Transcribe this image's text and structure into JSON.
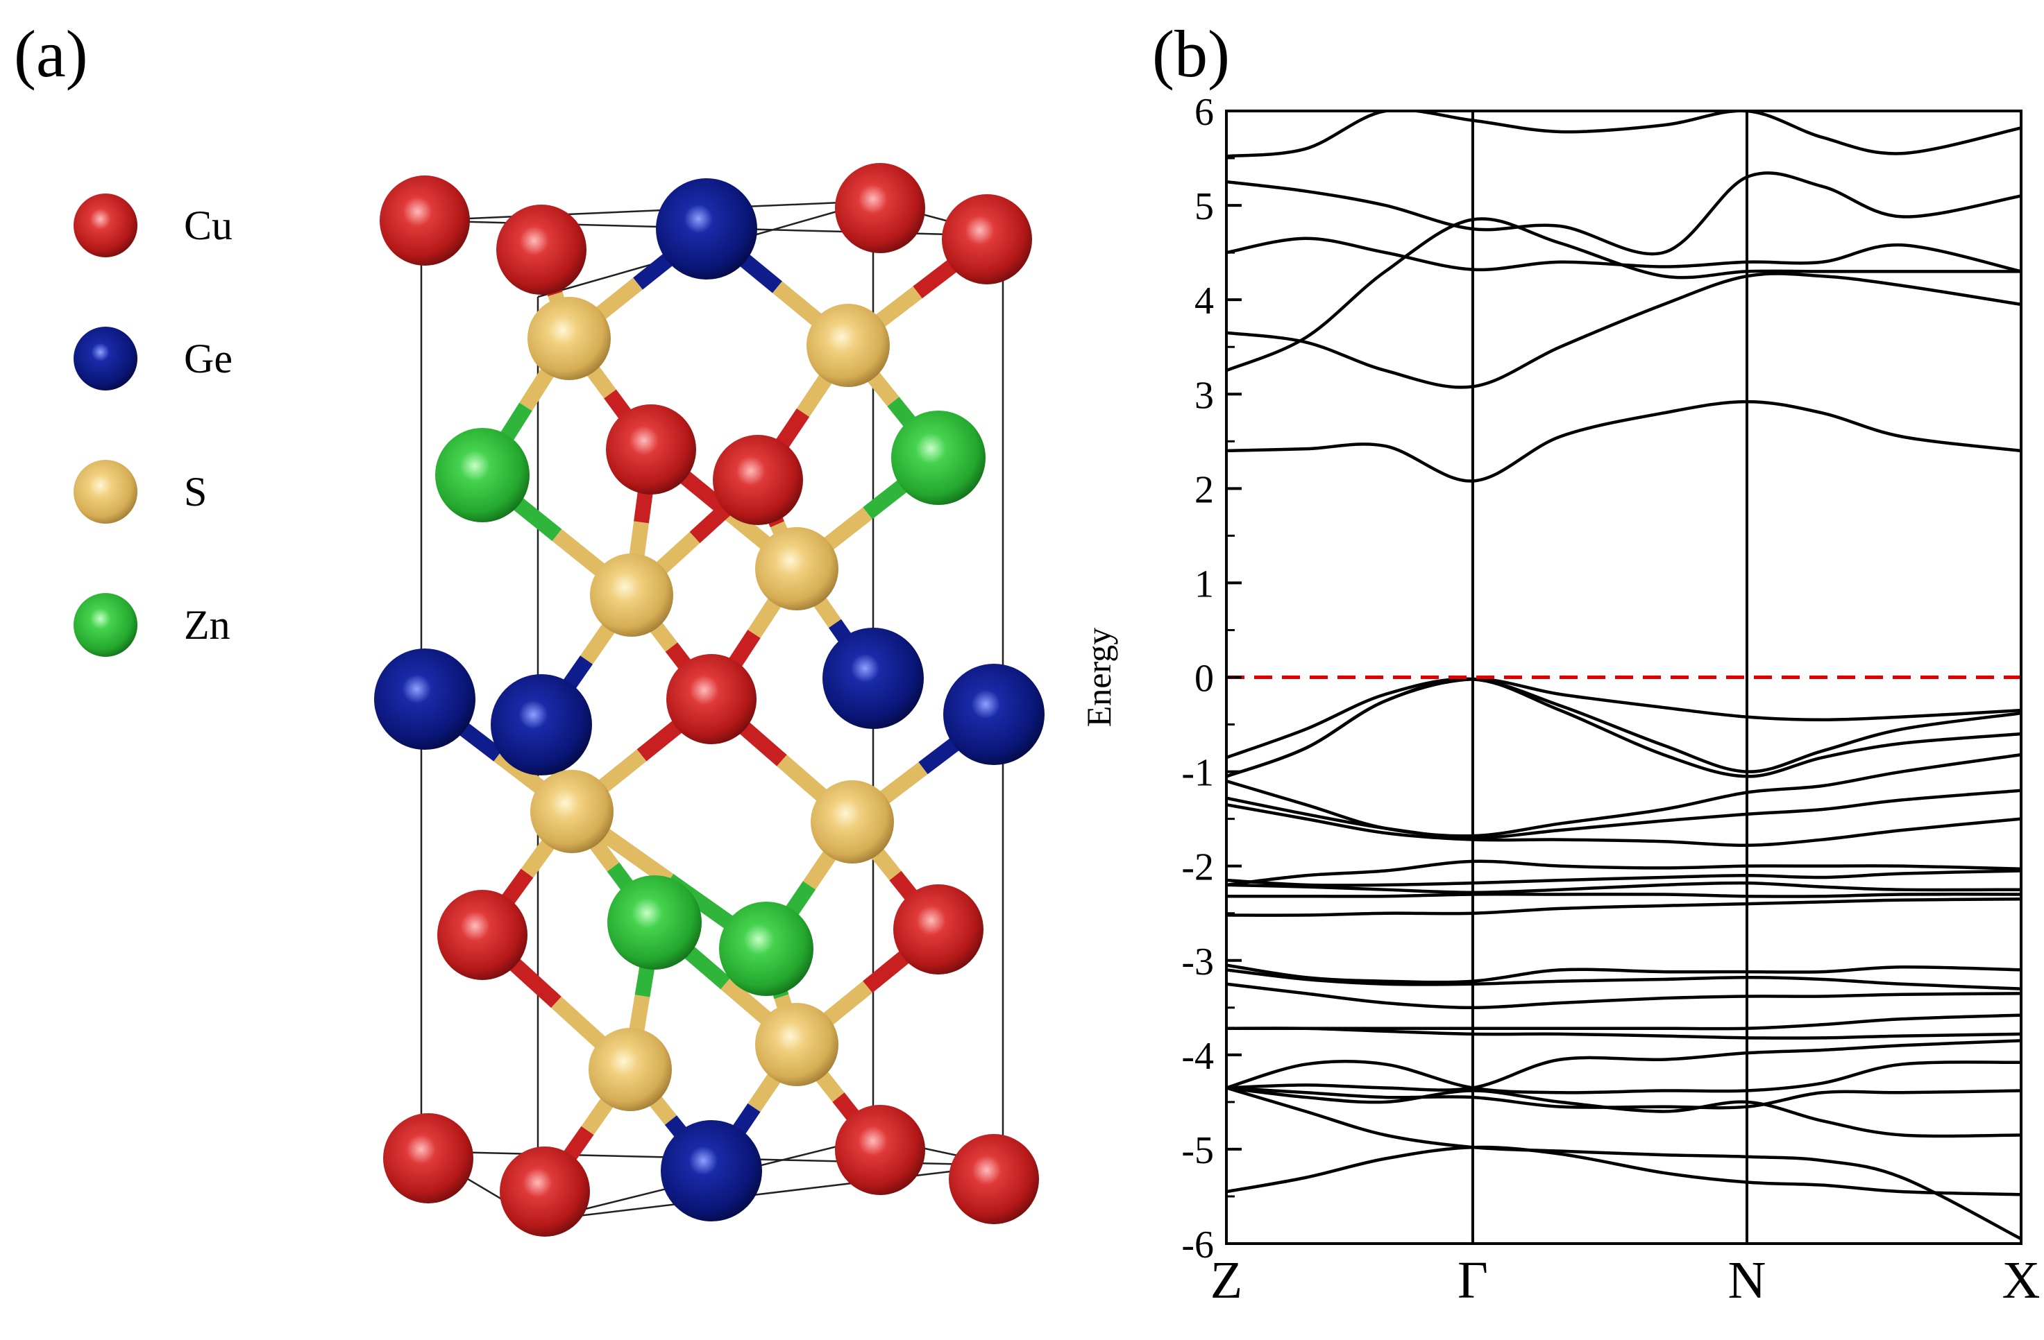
{
  "figure": {
    "panel_a_label": "(a)",
    "panel_b_label": "(b)"
  },
  "crystal": {
    "legend": [
      {
        "element": "Cu",
        "color": "#c81e1e"
      },
      {
        "element": "Ge",
        "color": "#0a1a86"
      },
      {
        "element": "S",
        "color": "#e8c26a"
      },
      {
        "element": "Zn",
        "color": "#2fbf3a"
      }
    ]
  },
  "chart_data": {
    "type": "line",
    "title": "",
    "xlabel": "",
    "ylabel": "Energy",
    "ylim": [
      -6,
      6
    ],
    "yticks": [
      -6,
      -5,
      -4,
      -3,
      -2,
      -1,
      0,
      1,
      2,
      3,
      4,
      5,
      6
    ],
    "kpath_labels": [
      "Z",
      "Γ",
      "N",
      "X"
    ],
    "kpath_positions": [
      0,
      0.31,
      0.655,
      1.0
    ],
    "fermi_level": 0,
    "fermi_line_color": "#e00000",
    "band_color": "#000000",
    "grid": false,
    "bands": [
      {
        "x": [
          0,
          0.1,
          0.2,
          0.31,
          0.42,
          0.55,
          0.655,
          0.75,
          0.85,
          1.0
        ],
        "y": [
          -5.45,
          -5.3,
          -5.1,
          -4.98,
          -5.05,
          -5.25,
          -5.35,
          -5.38,
          -5.45,
          -5.48
        ]
      },
      {
        "x": [
          0,
          0.1,
          0.2,
          0.31,
          0.42,
          0.55,
          0.655,
          0.75,
          0.85,
          1.0
        ],
        "y": [
          -4.35,
          -4.6,
          -4.85,
          -4.98,
          -5.02,
          -5.06,
          -5.08,
          -5.12,
          -5.3,
          -5.95
        ]
      },
      {
        "x": [
          0,
          0.1,
          0.2,
          0.31,
          0.42,
          0.55,
          0.655,
          0.75,
          0.85,
          1.0
        ],
        "y": [
          -4.35,
          -4.45,
          -4.5,
          -4.38,
          -4.5,
          -4.6,
          -4.5,
          -4.7,
          -4.85,
          -4.85
        ]
      },
      {
        "x": [
          0,
          0.1,
          0.2,
          0.31,
          0.42,
          0.55,
          0.655,
          0.75,
          0.85,
          1.0
        ],
        "y": [
          -4.35,
          -4.4,
          -4.45,
          -4.45,
          -4.55,
          -4.55,
          -4.55,
          -4.4,
          -4.4,
          -4.38
        ]
      },
      {
        "x": [
          0,
          0.1,
          0.2,
          0.31,
          0.42,
          0.55,
          0.655,
          0.75,
          0.85,
          1.0
        ],
        "y": [
          -4.35,
          -4.1,
          -4.1,
          -4.35,
          -4.4,
          -4.38,
          -4.38,
          -4.3,
          -4.1,
          -4.08
        ]
      },
      {
        "x": [
          0,
          0.1,
          0.2,
          0.31,
          0.42,
          0.55,
          0.655,
          0.75,
          0.85,
          1.0
        ],
        "y": [
          -4.35,
          -4.32,
          -4.35,
          -4.35,
          -4.05,
          -4.05,
          -3.98,
          -3.95,
          -3.9,
          -3.85
        ]
      },
      {
        "x": [
          0,
          0.1,
          0.2,
          0.31,
          0.42,
          0.55,
          0.655,
          0.75,
          0.85,
          1.0
        ],
        "y": [
          -3.72,
          -3.72,
          -3.75,
          -3.78,
          -3.78,
          -3.8,
          -3.82,
          -3.82,
          -3.8,
          -3.78
        ]
      },
      {
        "x": [
          0,
          0.1,
          0.2,
          0.31,
          0.42,
          0.55,
          0.655,
          0.75,
          0.85,
          1.0
        ],
        "y": [
          -3.72,
          -3.72,
          -3.72,
          -3.72,
          -3.72,
          -3.72,
          -3.72,
          -3.68,
          -3.62,
          -3.58
        ]
      },
      {
        "x": [
          0,
          0.1,
          0.2,
          0.31,
          0.42,
          0.55,
          0.655,
          0.75,
          0.85,
          1.0
        ],
        "y": [
          -3.25,
          -3.35,
          -3.45,
          -3.5,
          -3.45,
          -3.4,
          -3.38,
          -3.38,
          -3.36,
          -3.35
        ]
      },
      {
        "x": [
          0,
          0.1,
          0.2,
          0.31,
          0.42,
          0.55,
          0.655,
          0.75,
          0.85,
          1.0
        ],
        "y": [
          -3.1,
          -3.2,
          -3.25,
          -3.25,
          -3.22,
          -3.2,
          -3.18,
          -3.2,
          -3.25,
          -3.3
        ]
      },
      {
        "x": [
          0,
          0.1,
          0.2,
          0.31,
          0.42,
          0.55,
          0.655,
          0.75,
          0.85,
          1.0
        ],
        "y": [
          -3.05,
          -3.18,
          -3.22,
          -3.22,
          -3.1,
          -3.12,
          -3.12,
          -3.12,
          -3.07,
          -3.1
        ]
      },
      {
        "x": [
          0,
          0.1,
          0.2,
          0.31,
          0.42,
          0.55,
          0.655,
          0.75,
          0.85,
          1.0
        ],
        "y": [
          -2.52,
          -2.52,
          -2.5,
          -2.5,
          -2.45,
          -2.42,
          -2.4,
          -2.38,
          -2.36,
          -2.35
        ]
      },
      {
        "x": [
          0,
          0.1,
          0.2,
          0.31,
          0.42,
          0.55,
          0.655,
          0.75,
          0.85,
          1.0
        ],
        "y": [
          -2.32,
          -2.32,
          -2.32,
          -2.3,
          -2.3,
          -2.3,
          -2.32,
          -2.32,
          -2.3,
          -2.3
        ]
      },
      {
        "x": [
          0,
          0.1,
          0.2,
          0.31,
          0.42,
          0.55,
          0.655,
          0.75,
          0.85,
          1.0
        ],
        "y": [
          -2.2,
          -2.22,
          -2.25,
          -2.28,
          -2.25,
          -2.2,
          -2.18,
          -2.22,
          -2.25,
          -2.25
        ]
      },
      {
        "x": [
          0,
          0.1,
          0.2,
          0.31,
          0.42,
          0.55,
          0.655,
          0.75,
          0.85,
          1.0
        ],
        "y": [
          -2.15,
          -2.2,
          -2.2,
          -2.18,
          -2.15,
          -2.12,
          -2.1,
          -2.12,
          -2.08,
          -2.05
        ]
      },
      {
        "x": [
          0,
          0.1,
          0.2,
          0.31,
          0.42,
          0.55,
          0.655,
          0.75,
          0.85,
          1.0
        ],
        "y": [
          -2.2,
          -2.1,
          -2.05,
          -1.95,
          -2.0,
          -2.02,
          -2.0,
          -2.0,
          -2.0,
          -2.03
        ]
      },
      {
        "x": [
          0,
          0.1,
          0.2,
          0.31,
          0.42,
          0.55,
          0.655,
          0.75,
          0.85,
          1.0
        ],
        "y": [
          -1.35,
          -1.5,
          -1.65,
          -1.72,
          -1.72,
          -1.74,
          -1.78,
          -1.72,
          -1.62,
          -1.5
        ]
      },
      {
        "x": [
          0,
          0.1,
          0.2,
          0.31,
          0.42,
          0.55,
          0.655,
          0.75,
          0.85,
          1.0
        ],
        "y": [
          -1.28,
          -1.45,
          -1.6,
          -1.7,
          -1.62,
          -1.52,
          -1.45,
          -1.4,
          -1.3,
          -1.2
        ]
      },
      {
        "x": [
          0,
          0.1,
          0.2,
          0.31,
          0.42,
          0.55,
          0.655,
          0.75,
          0.85,
          1.0
        ],
        "y": [
          -1.1,
          -1.35,
          -1.6,
          -1.68,
          -1.55,
          -1.4,
          -1.22,
          -1.15,
          -1.0,
          -0.82
        ]
      },
      {
        "x": [
          0,
          0.1,
          0.2,
          0.31,
          0.42,
          0.55,
          0.655,
          0.75,
          0.85,
          1.0
        ],
        "y": [
          -1.05,
          -0.75,
          -0.25,
          -0.02,
          -0.35,
          -0.82,
          -1.05,
          -0.85,
          -0.7,
          -0.6
        ]
      },
      {
        "x": [
          0,
          0.1,
          0.2,
          0.31,
          0.42,
          0.55,
          0.655,
          0.75,
          0.85,
          1.0
        ],
        "y": [
          -0.85,
          -0.55,
          -0.18,
          -0.02,
          -0.3,
          -0.72,
          -1.0,
          -0.78,
          -0.55,
          -0.38
        ]
      },
      {
        "x": [
          0,
          0.1,
          0.2,
          0.31,
          0.42,
          0.55,
          0.655,
          0.75,
          0.85,
          1.0
        ],
        "y": [
          -1.05,
          -0.75,
          -0.25,
          -0.02,
          -0.18,
          -0.32,
          -0.42,
          -0.45,
          -0.42,
          -0.35
        ]
      },
      {
        "x": [
          0,
          0.1,
          0.2,
          0.31,
          0.42,
          0.55,
          0.655,
          0.75,
          0.85,
          1.0
        ],
        "y": [
          2.4,
          2.42,
          2.45,
          2.08,
          2.55,
          2.8,
          2.92,
          2.8,
          2.55,
          2.4
        ]
      },
      {
        "x": [
          0,
          0.1,
          0.2,
          0.31,
          0.42,
          0.55,
          0.655,
          0.75,
          0.85,
          1.0
        ],
        "y": [
          3.65,
          3.55,
          3.25,
          3.08,
          3.5,
          3.95,
          4.25,
          4.25,
          4.15,
          3.95
        ]
      },
      {
        "x": [
          0,
          0.1,
          0.2,
          0.31,
          0.42,
          0.55,
          0.655,
          0.75,
          0.85,
          1.0
        ],
        "y": [
          3.25,
          3.6,
          4.3,
          4.85,
          4.6,
          4.25,
          4.3,
          4.3,
          4.3,
          4.3
        ]
      },
      {
        "x": [
          0,
          0.1,
          0.2,
          0.31,
          0.42,
          0.55,
          0.655,
          0.75,
          0.85,
          1.0
        ],
        "y": [
          4.5,
          4.65,
          4.5,
          4.32,
          4.4,
          4.35,
          4.4,
          4.4,
          4.58,
          4.3
        ]
      },
      {
        "x": [
          0,
          0.1,
          0.2,
          0.31,
          0.42,
          0.55,
          0.655,
          0.75,
          0.85,
          1.0
        ],
        "y": [
          5.25,
          5.15,
          5.0,
          4.75,
          4.78,
          4.5,
          5.3,
          5.2,
          4.88,
          5.1
        ]
      },
      {
        "x": [
          0,
          0.1,
          0.2,
          0.31,
          0.42,
          0.55,
          0.655,
          0.75,
          0.85,
          1.0
        ],
        "y": [
          5.52,
          5.6,
          6.0,
          5.9,
          5.78,
          5.85,
          6.0,
          5.72,
          5.55,
          5.82
        ]
      }
    ]
  }
}
